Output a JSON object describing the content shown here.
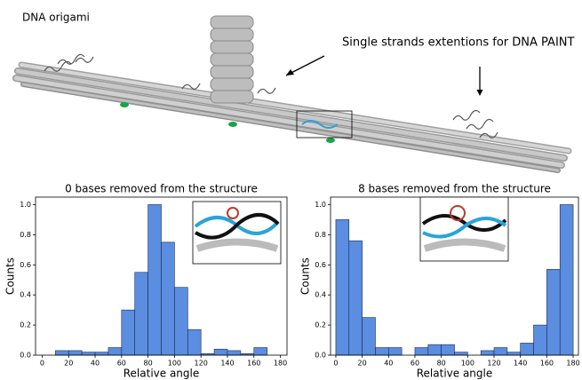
{
  "figure": {
    "title": "DNA origami",
    "annotation": "Single strands extentions for DNA PAINT"
  },
  "chart_data": [
    {
      "type": "histogram",
      "title": "0 bases removed from the structure",
      "xlabel": "Relative angle",
      "ylabel": "Counts",
      "bins": [
        10,
        20,
        30,
        40,
        50,
        60,
        70,
        80,
        90,
        100,
        110,
        120,
        130,
        140,
        150,
        160,
        170
      ],
      "values": [
        0.03,
        0.03,
        0.02,
        0.02,
        0.05,
        0.3,
        0.55,
        1.0,
        0.75,
        0.45,
        0.17,
        0.01,
        0.04,
        0.03,
        0.01,
        0.05
      ],
      "color": "#5b8de0",
      "xlim": [
        -5,
        185
      ],
      "ylim": [
        0,
        1.05
      ],
      "xticks": [
        0,
        20,
        40,
        60,
        80,
        100,
        120,
        140,
        160,
        180
      ],
      "yticks": [
        {
          "value": 0,
          "label": "0.0"
        },
        0.2,
        0.4,
        0.6,
        0.8,
        {
          "value": 1,
          "label": "1.0"
        }
      ]
    },
    {
      "type": "histogram",
      "title": "8 bases removed from the structure",
      "xlabel": "Relative angle",
      "ylabel": "Counts",
      "bins": [
        0,
        10,
        20,
        30,
        40,
        50,
        60,
        70,
        80,
        90,
        100,
        110,
        120,
        130,
        140,
        150,
        160,
        170,
        180
      ],
      "values": [
        0.9,
        0.76,
        0.25,
        0.05,
        0.05,
        0,
        0.05,
        0.07,
        0.07,
        0.02,
        0,
        0.03,
        0.05,
        0.02,
        0.08,
        0.2,
        0.57,
        1.0
      ],
      "color": "#5b8de0",
      "xlim": [
        -4,
        184
      ],
      "ylim": [
        0,
        1.05
      ],
      "xticks": [
        0,
        20,
        40,
        60,
        80,
        100,
        120,
        140,
        160,
        180
      ],
      "yticks": [
        {
          "value": 0,
          "label": "0.0"
        },
        0.2,
        0.4,
        0.6,
        0.8,
        {
          "value": 1,
          "label": "1.0"
        }
      ]
    }
  ]
}
